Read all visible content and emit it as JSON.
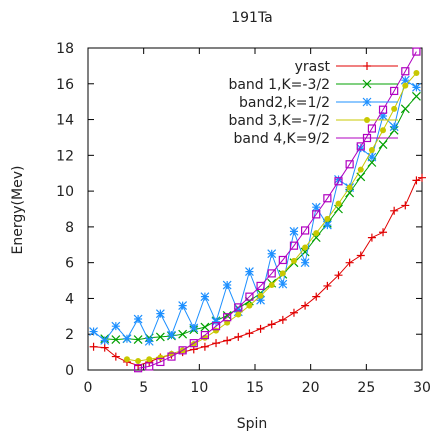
{
  "chart_data": {
    "type": "line",
    "title": "191Ta",
    "xlabel": "Spin",
    "ylabel": "Energy(Mev)",
    "xlim": [
      0,
      30
    ],
    "ylim": [
      0,
      18
    ],
    "xticks": [
      "0",
      "5",
      "10",
      "15",
      "20",
      "25",
      "30"
    ],
    "yticks": [
      "0",
      "2",
      "4",
      "6",
      "8",
      "10",
      "12",
      "14",
      "16",
      "18"
    ],
    "grid": false,
    "legend_position": "top-right",
    "series": [
      {
        "name": "yrast",
        "color": "#e00000",
        "marker": "plus",
        "points": [
          [
            0.5,
            1.3
          ],
          [
            1.5,
            1.25
          ],
          [
            2.5,
            0.75
          ],
          [
            3.5,
            0.45
          ],
          [
            4.5,
            0.25
          ],
          [
            5.5,
            0.45
          ],
          [
            6.5,
            0.7
          ],
          [
            7.5,
            0.85
          ],
          [
            8.5,
            1.0
          ],
          [
            9.5,
            1.15
          ],
          [
            10.5,
            1.3
          ],
          [
            11.5,
            1.5
          ],
          [
            12.5,
            1.65
          ],
          [
            13.5,
            1.85
          ],
          [
            14.5,
            2.05
          ],
          [
            15.5,
            2.3
          ],
          [
            16.5,
            2.55
          ],
          [
            17.5,
            2.8
          ],
          [
            18.5,
            3.2
          ],
          [
            19.5,
            3.6
          ],
          [
            20.5,
            4.1
          ],
          [
            21.5,
            4.7
          ],
          [
            22.5,
            5.3
          ],
          [
            23.5,
            6.0
          ],
          [
            24.5,
            6.4
          ],
          [
            25.5,
            7.4
          ],
          [
            26.5,
            7.7
          ],
          [
            27.5,
            8.9
          ],
          [
            28.5,
            9.2
          ],
          [
            29.5,
            10.6
          ],
          [
            30,
            10.75
          ]
        ]
      },
      {
        "name": "band 1,K=-3/2",
        "color": "#00a000",
        "marker": "x",
        "points": [
          [
            1.5,
            1.75
          ],
          [
            2.5,
            1.7
          ],
          [
            3.5,
            1.75
          ],
          [
            4.5,
            1.7
          ],
          [
            5.5,
            1.8
          ],
          [
            6.5,
            1.85
          ],
          [
            7.5,
            1.9
          ],
          [
            8.5,
            2.0
          ],
          [
            9.5,
            2.25
          ],
          [
            10.5,
            2.4
          ],
          [
            11.5,
            2.75
          ],
          [
            12.5,
            3.05
          ],
          [
            13.5,
            3.45
          ],
          [
            14.5,
            3.85
          ],
          [
            15.5,
            4.3
          ],
          [
            16.5,
            4.85
          ],
          [
            17.5,
            5.35
          ],
          [
            18.5,
            6.0
          ],
          [
            19.5,
            6.6
          ],
          [
            20.5,
            7.4
          ],
          [
            21.5,
            8.2
          ],
          [
            22.5,
            9.0
          ],
          [
            23.5,
            9.9
          ],
          [
            24.5,
            10.8
          ],
          [
            25.5,
            11.6
          ],
          [
            26.5,
            12.6
          ],
          [
            27.5,
            13.4
          ],
          [
            28.5,
            14.6
          ],
          [
            29.5,
            15.3
          ]
        ]
      },
      {
        "name": "band2,k=1/2",
        "color": "#1e90ff",
        "marker": "star",
        "points": [
          [
            0.5,
            2.15
          ],
          [
            1.5,
            1.65
          ],
          [
            2.5,
            2.45
          ],
          [
            3.5,
            1.75
          ],
          [
            4.5,
            2.85
          ],
          [
            5.5,
            1.6
          ],
          [
            6.5,
            3.15
          ],
          [
            7.5,
            1.95
          ],
          [
            8.5,
            3.6
          ],
          [
            9.5,
            2.35
          ],
          [
            10.5,
            4.1
          ],
          [
            11.5,
            2.7
          ],
          [
            12.5,
            4.75
          ],
          [
            13.5,
            3.25
          ],
          [
            14.5,
            5.5
          ],
          [
            15.5,
            3.9
          ],
          [
            16.5,
            6.5
          ],
          [
            17.5,
            4.8
          ],
          [
            18.5,
            7.75
          ],
          [
            19.5,
            6.0
          ],
          [
            20.5,
            9.1
          ],
          [
            21.5,
            8.1
          ],
          [
            22.5,
            10.65
          ],
          [
            23.5,
            10.2
          ],
          [
            24.5,
            12.4
          ],
          [
            25.5,
            11.9
          ],
          [
            26.5,
            14.2
          ],
          [
            27.5,
            13.6
          ],
          [
            28.5,
            16.2
          ],
          [
            29.5,
            15.8
          ]
        ]
      },
      {
        "name": "band 3,K=-7/2",
        "color": "#c8c800",
        "marker": "dot",
        "points": [
          [
            3.5,
            0.6
          ],
          [
            4.5,
            0.5
          ],
          [
            5.5,
            0.6
          ],
          [
            6.5,
            0.7
          ],
          [
            7.5,
            0.9
          ],
          [
            8.5,
            1.1
          ],
          [
            9.5,
            1.45
          ],
          [
            10.5,
            1.8
          ],
          [
            11.5,
            2.2
          ],
          [
            12.5,
            2.65
          ],
          [
            13.5,
            3.1
          ],
          [
            14.5,
            3.6
          ],
          [
            15.5,
            4.15
          ],
          [
            16.5,
            4.75
          ],
          [
            17.5,
            5.4
          ],
          [
            18.5,
            6.1
          ],
          [
            19.5,
            6.85
          ],
          [
            20.5,
            7.65
          ],
          [
            21.5,
            8.45
          ],
          [
            22.5,
            9.3
          ],
          [
            23.5,
            10.2
          ],
          [
            24.5,
            11.2
          ],
          [
            25.5,
            12.3
          ],
          [
            26.5,
            13.4
          ],
          [
            27.5,
            14.6
          ],
          [
            28.5,
            15.9
          ],
          [
            29.5,
            16.6
          ]
        ]
      },
      {
        "name": "band 4,K=9/2",
        "color": "#b000c0",
        "marker": "square",
        "points": [
          [
            4.5,
            0.1
          ],
          [
            5.5,
            0.2
          ],
          [
            6.5,
            0.45
          ],
          [
            7.5,
            0.75
          ],
          [
            8.5,
            1.1
          ],
          [
            9.5,
            1.5
          ],
          [
            10.5,
            1.95
          ],
          [
            11.5,
            2.45
          ],
          [
            12.5,
            2.95
          ],
          [
            13.5,
            3.5
          ],
          [
            14.5,
            4.1
          ],
          [
            15.5,
            4.7
          ],
          [
            16.5,
            5.4
          ],
          [
            17.5,
            6.15
          ],
          [
            18.5,
            6.95
          ],
          [
            19.5,
            7.8
          ],
          [
            20.5,
            8.7
          ],
          [
            21.5,
            9.6
          ],
          [
            22.5,
            10.55
          ],
          [
            23.5,
            11.5
          ],
          [
            24.5,
            12.5
          ],
          [
            25.5,
            13.5
          ],
          [
            26.5,
            14.55
          ],
          [
            27.5,
            15.6
          ],
          [
            28.5,
            16.7
          ],
          [
            29.5,
            17.8
          ]
        ]
      }
    ]
  }
}
